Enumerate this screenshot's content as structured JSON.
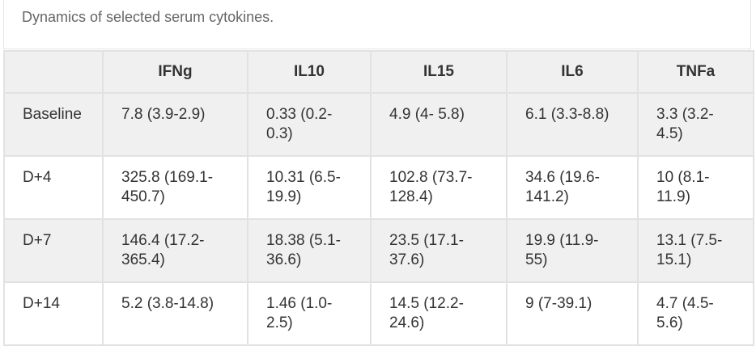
{
  "caption": "Dynamics of selected serum cytokines.",
  "table": {
    "header": [
      "",
      "IFNg",
      "IL10",
      "IL15",
      "IL6",
      "TNFa"
    ],
    "rows": [
      [
        "Baseline",
        "7.8 (3.9-2.9)",
        "0.33 (0.2-0.3)",
        "4.9 (4- 5.8)",
        "6.1 (3.3-8.8)",
        "3.3 (3.2-4.5)"
      ],
      [
        "D+4",
        "325.8 (169.1-450.7)",
        "10.31 (6.5-19.9)",
        "102.8 (73.7-128.4)",
        "34.6 (19.6-141.2)",
        "10 (8.1-11.9)"
      ],
      [
        "D+7",
        "146.4 (17.2-365.4)",
        "18.38 (5.1-36.6)",
        "23.5 (17.1-37.6)",
        "19.9 (11.9-55)",
        "13.1 (7.5-15.1)"
      ],
      [
        "D+14",
        "5.2 (3.8-14.8)",
        "1.46 (1.0-2.5)",
        "14.5 (12.2-24.6)",
        "9 (7-39.1)",
        "4.7 (4.5-5.6)"
      ]
    ]
  }
}
